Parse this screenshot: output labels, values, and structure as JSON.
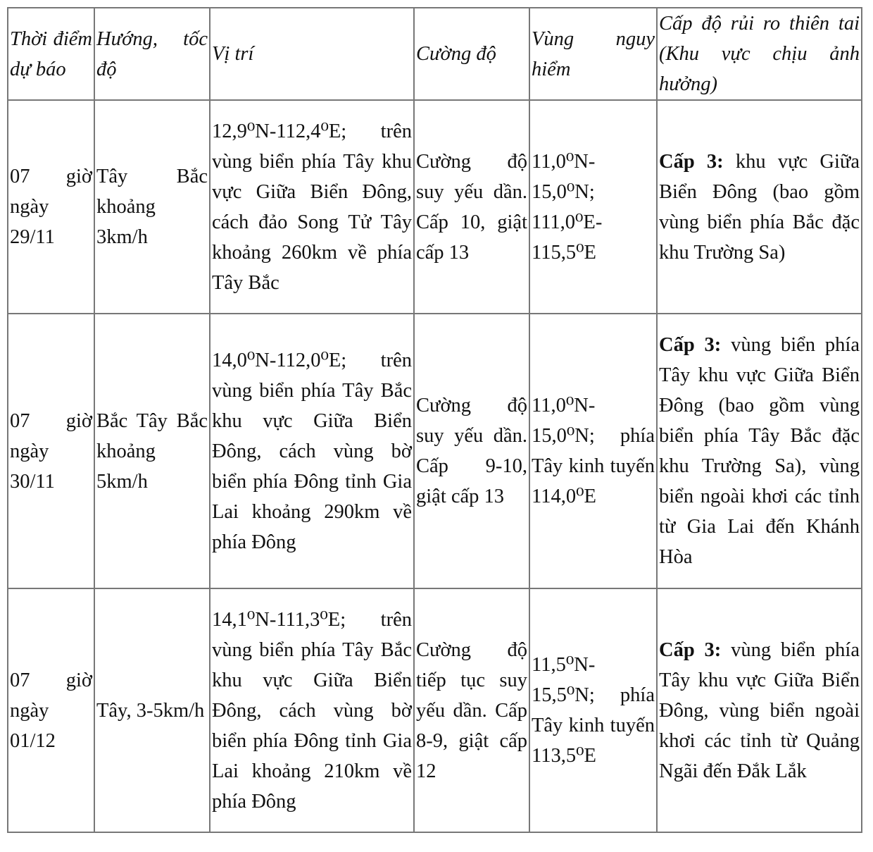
{
  "headers": [
    "Thời điểm dự báo",
    "Hướng, tốc độ",
    "Vị trí",
    "Cường độ",
    "Vùng nguy hiểm",
    "Cấp độ rủi ro thiên tai (Khu vực chịu ảnh hưởng)"
  ],
  "rows": [
    {
      "time": "07 giờ ngày 29/11",
      "direction": "Tây Bắc khoảng 3km/h",
      "position": "12,9⁰N-112,4⁰E; trên vùng biển phía Tây khu vực Giữa Biển Đông, cách đảo Song Tử Tây khoảng 260km về phía Tây Bắc",
      "intensity": "Cường độ suy yếu dần. Cấp 10, giật cấp 13",
      "danger_zone": "11,0⁰N-15,0⁰N; 111,0⁰E-115,5⁰E",
      "risk_level": "Cấp 3:",
      "risk_area": " khu vực Giữa Biển Đông (bao gồm vùng biển phía Bắc đặc khu Trường Sa)"
    },
    {
      "time": "07 giờ ngày 30/11",
      "direction": "Bắc Tây Bắc khoảng 5km/h",
      "position": "14,0⁰N-112,0⁰E; trên vùng biển phía Tây Bắc khu vực Giữa Biển Đông, cách vùng bờ biển phía Đông tỉnh Gia Lai khoảng 290km về phía Đông",
      "intensity": "Cường độ suy yếu dần. Cấp 9-10, giật cấp 13",
      "danger_zone": "11,0⁰N-15,0⁰N; phía Tây kinh tuyến 114,0⁰E",
      "risk_level": "Cấp 3:",
      "risk_area": " vùng biển phía Tây khu vực Giữa Biển Đông (bao gồm vùng biển phía Tây Bắc đặc khu Trường Sa), vùng biển ngoài khơi các tỉnh từ Gia Lai đến Khánh Hòa"
    },
    {
      "time": "07 giờ ngày 01/12",
      "direction": "Tây, 3-5km/h",
      "position": "14,1⁰N-111,3⁰E; trên vùng biển phía Tây Bắc khu vực Giữa Biển Đông, cách vùng bờ biển phía Đông tỉnh Gia Lai khoảng 210km về phía Đông",
      "intensity": "Cường độ tiếp tục suy yếu dần. Cấp 8-9, giật cấp 12",
      "danger_zone": "11,5⁰N-15,5⁰N; phía Tây kinh tuyến 113,5⁰E",
      "risk_level": "Cấp 3:",
      "risk_area": " vùng biển phía Tây khu vực Giữa Biển Đông, vùng biển ngoài khơi các tỉnh từ Quảng Ngãi đến Đắk Lắk"
    }
  ]
}
